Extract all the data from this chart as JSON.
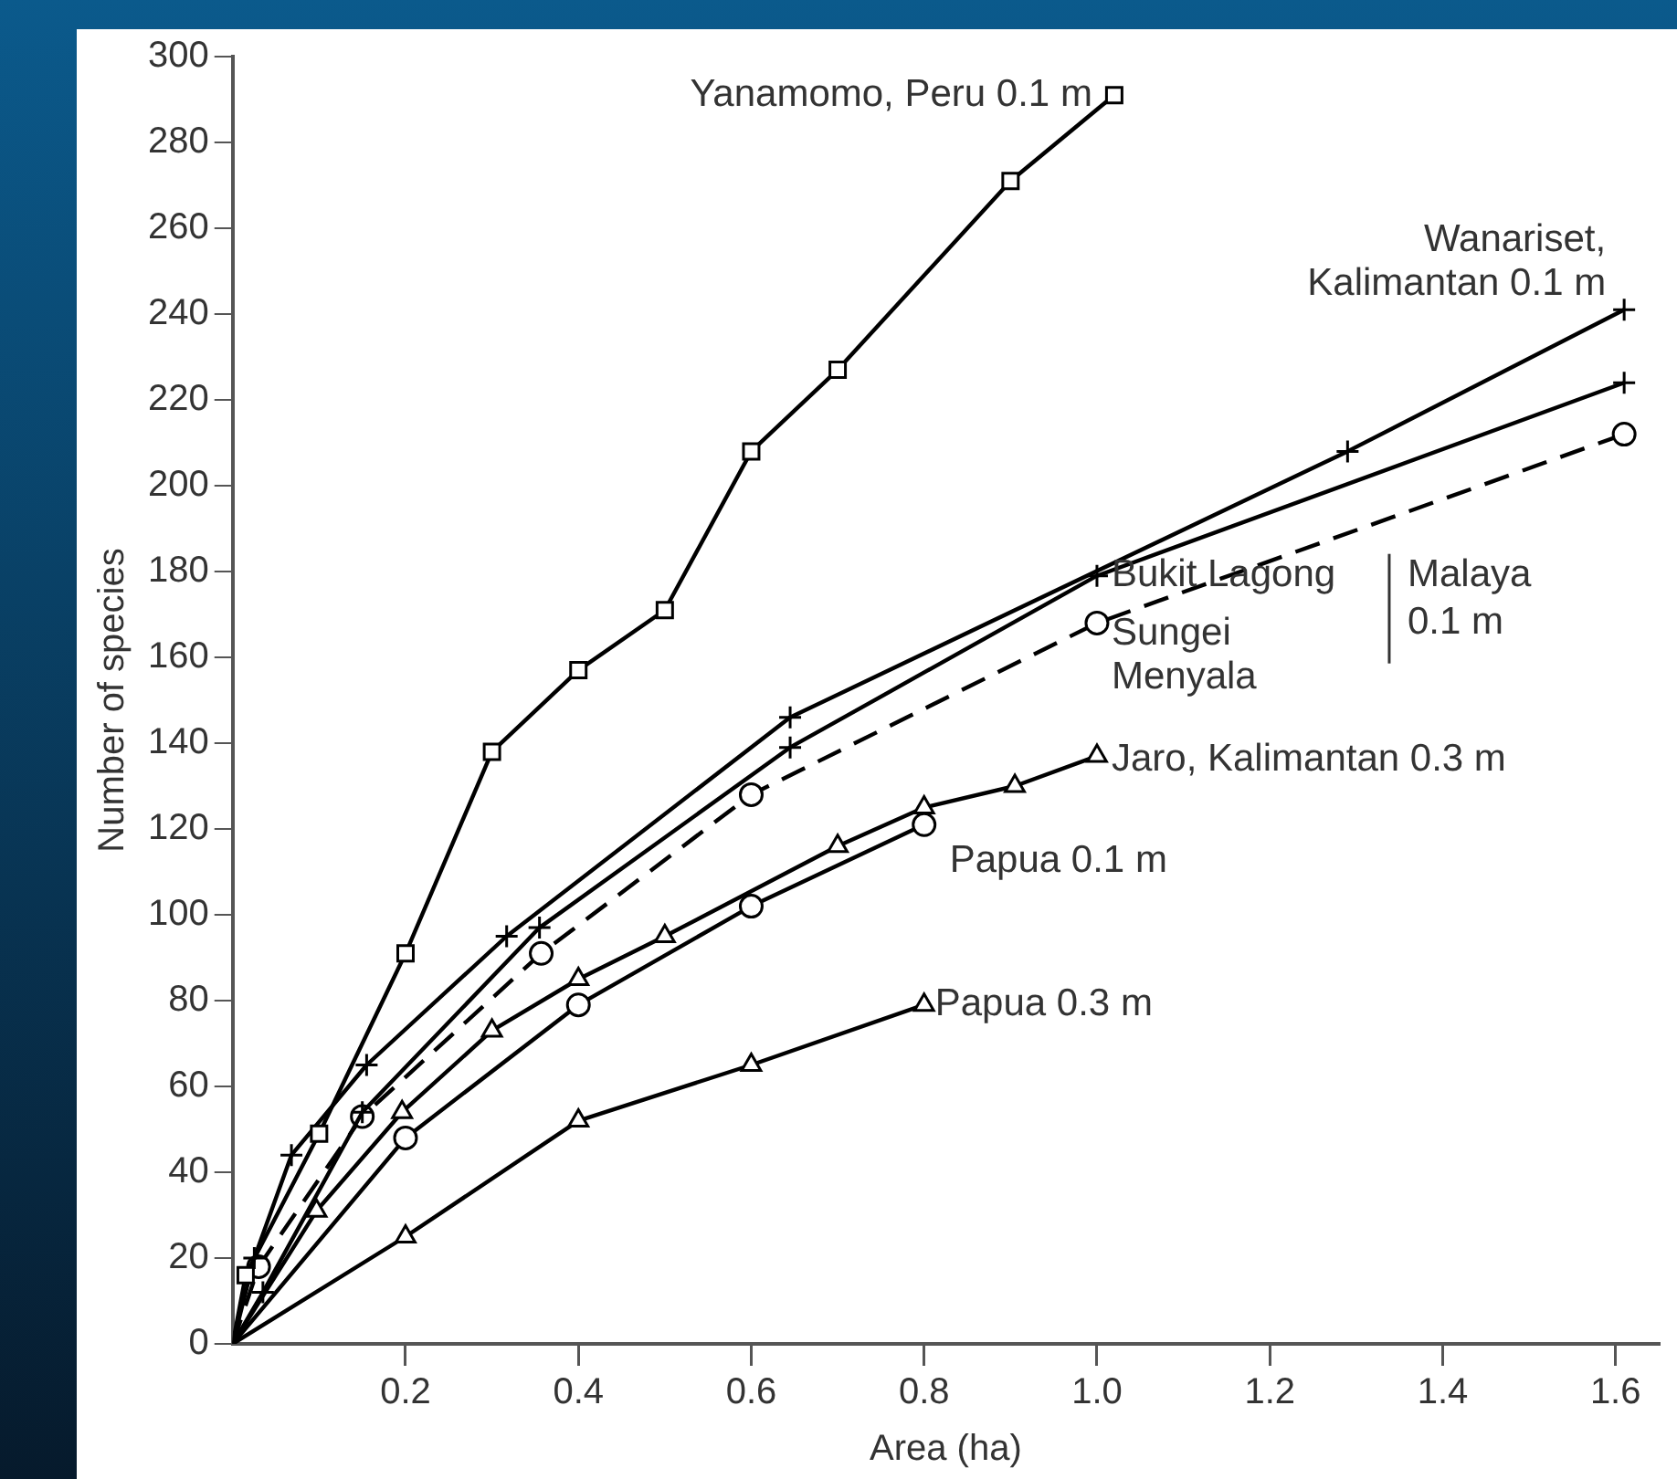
{
  "chart_data": {
    "type": "line",
    "xlabel": "Area (ha)",
    "ylabel": "Number of species",
    "xlim": [
      0,
      1.65
    ],
    "ylim": [
      0,
      300
    ],
    "xticks": [
      0.2,
      0.4,
      0.6,
      0.8,
      {
        "value": 1,
        "label": "1.0"
      },
      1.2,
      1.4,
      1.6
    ],
    "yticks": [
      0,
      20,
      40,
      60,
      80,
      100,
      120,
      140,
      160,
      180,
      200,
      220,
      240,
      260,
      280,
      300
    ],
    "grid": false,
    "legend": false,
    "annotations": [
      "Malaya 0.1 m"
    ],
    "series": [
      {
        "name": "Yanamomo, Peru 0.1 m",
        "color": "#000000",
        "marker": "square",
        "line_style": "solid",
        "x": [
          0,
          0.015,
          0.1,
          0.2,
          0.3,
          0.4,
          0.5,
          0.6,
          0.7,
          0.9,
          1.02
        ],
        "values": [
          0,
          16,
          49,
          91,
          138,
          157,
          171,
          208,
          227,
          271,
          291
        ]
      },
      {
        "name": "Wanariset, Kalimantan 0.1 m",
        "color": "#000000",
        "marker": "cross",
        "line_style": "solid",
        "x": [
          0,
          0.025,
          0.068,
          0.155,
          0.317,
          0.645,
          1.29,
          1.61
        ],
        "values": [
          0,
          20,
          44,
          65,
          95,
          146,
          208,
          241
        ]
      },
      {
        "name": "Bukit Lagong",
        "color": "#000000",
        "marker": "cross",
        "line_style": "solid",
        "x": [
          0,
          0.035,
          0.15,
          0.355,
          0.645,
          1.0,
          1.61
        ],
        "values": [
          0,
          12,
          54,
          97,
          139,
          179,
          224
        ]
      },
      {
        "name": "Sungei Menyala",
        "color": "#000000",
        "marker": "circle",
        "line_style": "dashed",
        "x": [
          0,
          0.03,
          0.15,
          0.357,
          0.6,
          1.0,
          1.61
        ],
        "values": [
          0,
          18,
          53,
          91,
          128,
          168,
          212
        ]
      },
      {
        "name": "Jaro, Kalimantan 0.3 m",
        "color": "#000000",
        "marker": "triangle",
        "line_style": "solid",
        "x": [
          0,
          0.097,
          0.196,
          0.3,
          0.4,
          0.5,
          0.7,
          0.8,
          0.905,
          1.0
        ],
        "values": [
          0,
          31,
          54,
          73,
          85,
          95,
          116,
          125,
          130,
          137
        ]
      },
      {
        "name": "Papua 0.1 m",
        "color": "#000000",
        "marker": "circle",
        "line_style": "solid",
        "x": [
          0,
          0.2,
          0.4,
          0.6,
          0.8
        ],
        "values": [
          0,
          48,
          79,
          102,
          121
        ]
      },
      {
        "name": "Papua 0.3 m",
        "color": "#000000",
        "marker": "triangle",
        "line_style": "solid",
        "x": [
          0,
          0.2,
          0.4,
          0.6,
          0.8
        ],
        "values": [
          0,
          25,
          52,
          65,
          79
        ]
      }
    ]
  }
}
